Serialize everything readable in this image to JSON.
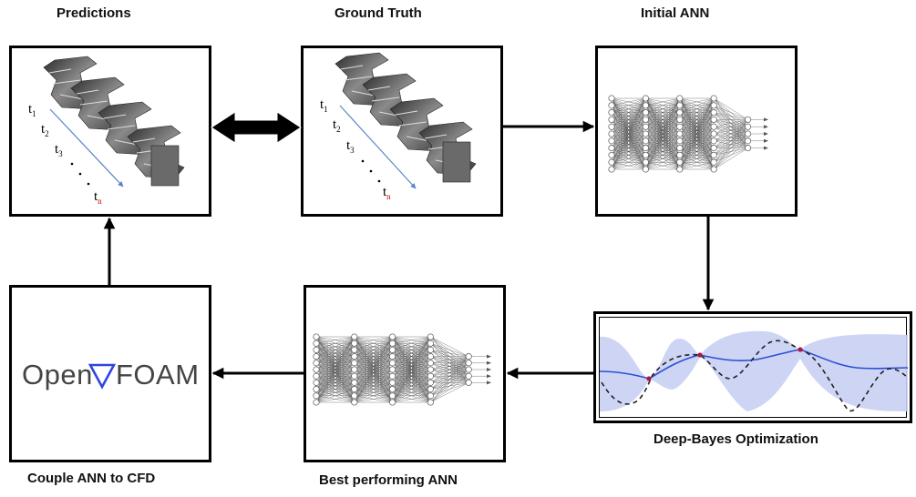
{
  "labels": {
    "predictions": "Predictions",
    "ground_truth": "Ground Truth",
    "initial_ann": "Initial ANN",
    "couple": "Couple ANN to CFD",
    "best": "Best performing  ANN",
    "deep_bayes": "Deep-Bayes Optimization"
  },
  "timesteps": [
    "t",
    "t",
    "t",
    "t"
  ],
  "timestep_subs": [
    "1",
    "2",
    "3",
    "n"
  ],
  "openfoam": {
    "left": "Open",
    "right": "FOAM"
  },
  "colors": {
    "arrow": "#000000",
    "time_arrow": "#5a86c8",
    "gp_mean": "#2a4fd6",
    "gp_band": "#c9cff3",
    "true_curve": "#222222",
    "sample_point": "#b0163a",
    "nabla": "#2f45e0"
  }
}
